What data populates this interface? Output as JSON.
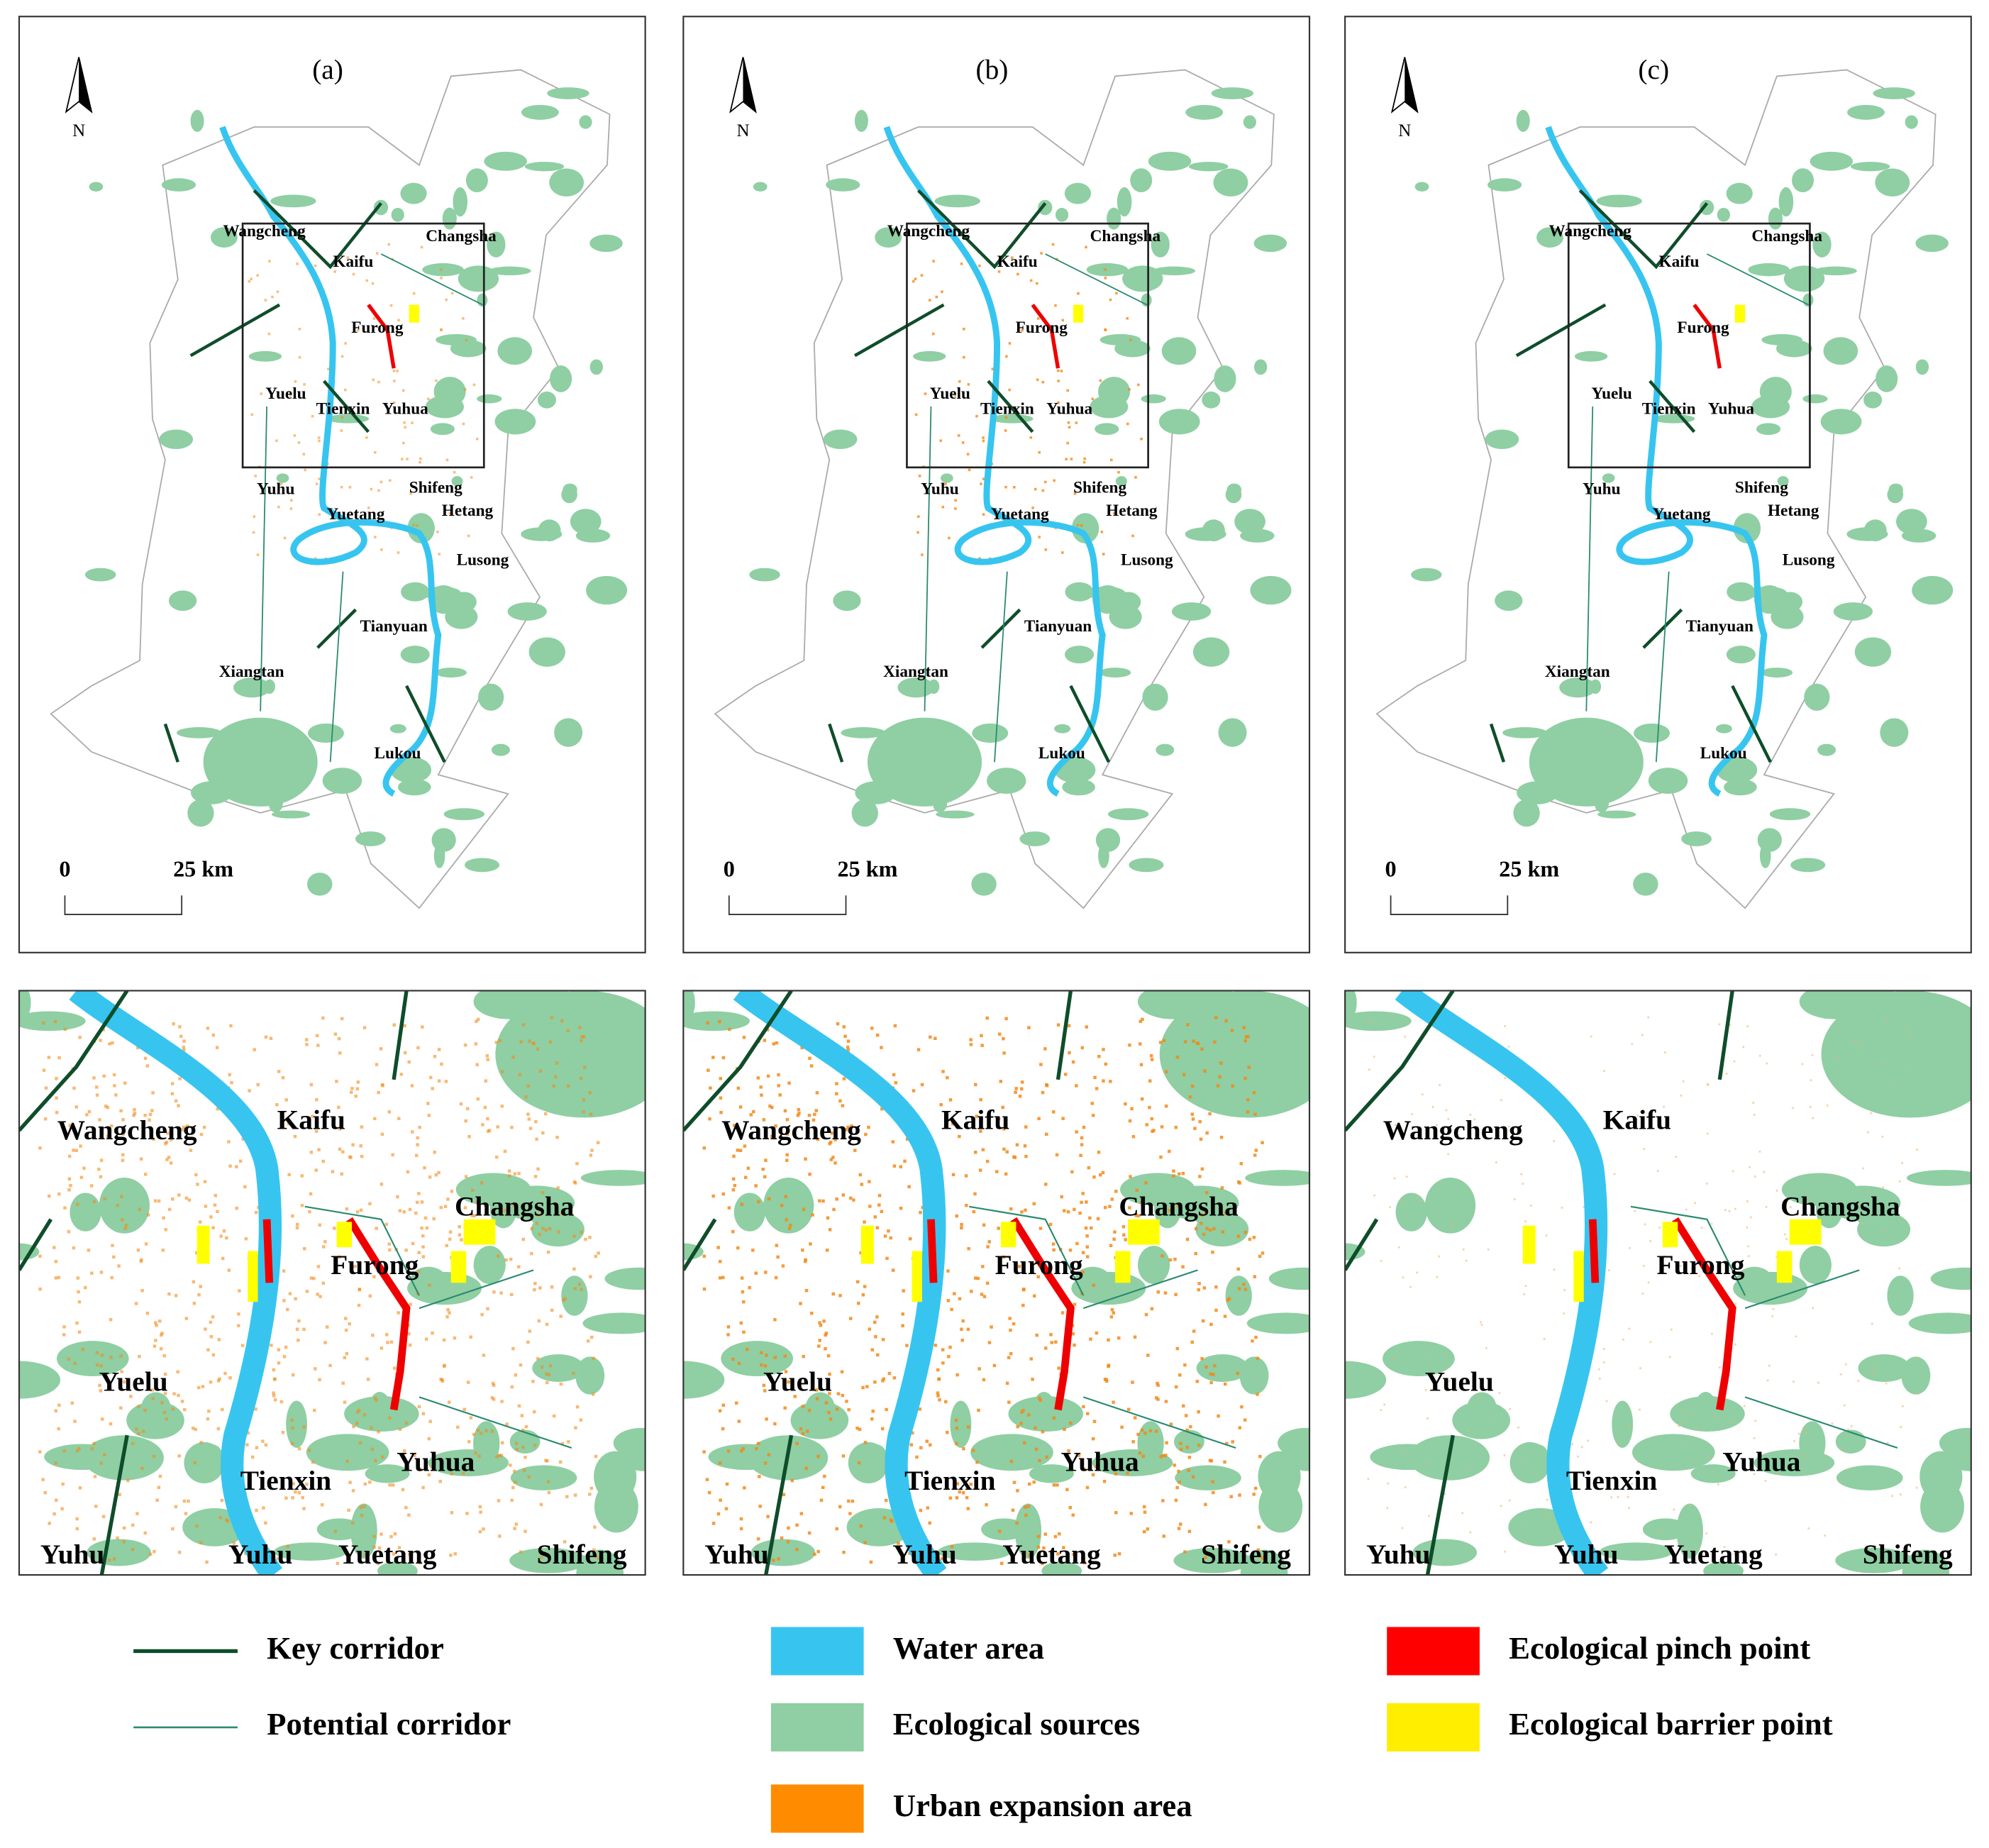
{
  "panels": [
    {
      "label": "(a)"
    },
    {
      "label": "(b)"
    },
    {
      "label": "(c)"
    }
  ],
  "north": "N",
  "scale_bar": {
    "start": "0",
    "end": "25 km"
  },
  "overview_places": [
    "Wangcheng",
    "Changsha",
    "Kaifu",
    "Furong",
    "Yuelu",
    "Tienxin",
    "Yuhua",
    "Yuhu",
    "Shifeng",
    "Yuetang",
    "Hetang",
    "Lusong",
    "Tianyuan",
    "Xiangtan",
    "Lukou"
  ],
  "inset_places": [
    "Wangcheng",
    "Kaifu",
    "Changsha",
    "Furong",
    "Yuelu",
    "Tienxin",
    "Yuhua",
    "Yuhu",
    "Yuhu",
    "Yuetang",
    "Shifeng"
  ],
  "legend": [
    "Key corridor",
    "Potential corridor",
    "Water area",
    "Ecological sources",
    "Urban expansion area",
    "Ecological pinch point",
    "Ecological barrier point"
  ]
}
